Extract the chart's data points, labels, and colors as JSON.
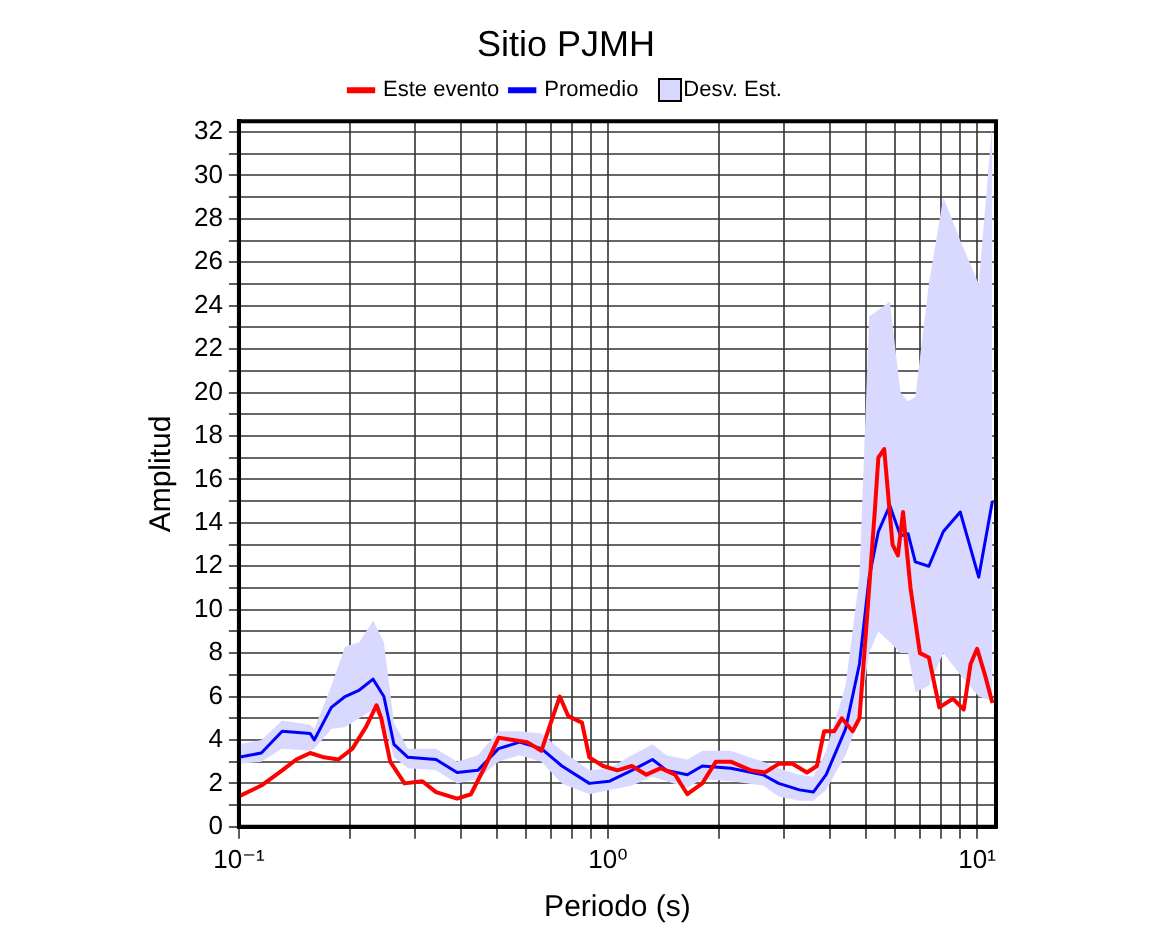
{
  "chart_data": {
    "type": "line",
    "title": "Sitio PJMH",
    "xlabel": "Periodo (s)",
    "ylabel": "Amplitud",
    "log": "x",
    "grid": true,
    "legend": "top",
    "marker": "none",
    "line_style": "solid",
    "xlim": [
      0.1,
      11.25
    ],
    "xticks": [
      {
        "value": 0.1,
        "label": "10⁻¹"
      },
      {
        "value": 0.2,
        "label": null
      },
      {
        "value": 0.3,
        "label": null
      },
      {
        "value": 0.4,
        "label": null
      },
      {
        "value": 0.5,
        "label": null
      },
      {
        "value": 0.6,
        "label": null
      },
      {
        "value": 0.7,
        "label": null
      },
      {
        "value": 0.8,
        "label": null
      },
      {
        "value": 0.9,
        "label": null
      },
      {
        "value": 1,
        "label": "10⁰"
      },
      {
        "value": 2,
        "label": null
      },
      {
        "value": 3,
        "label": null
      },
      {
        "value": 4,
        "label": null
      },
      {
        "value": 5,
        "label": null
      },
      {
        "value": 6,
        "label": null
      },
      {
        "value": 7,
        "label": null
      },
      {
        "value": 8,
        "label": null
      },
      {
        "value": 9,
        "label": null
      },
      {
        "value": 10,
        "label": "10¹"
      }
    ],
    "ylim": [
      0,
      32.5
    ],
    "yticks": [
      0,
      {
        "value": 1,
        "label": null
      },
      2,
      {
        "value": 3,
        "label": null
      },
      4,
      {
        "value": 5,
        "label": null
      },
      6,
      {
        "value": 7,
        "label": null
      },
      8,
      {
        "value": 9,
        "label": null
      },
      10,
      {
        "value": 11,
        "label": null
      },
      12,
      {
        "value": 13,
        "label": null
      },
      14,
      {
        "value": 15,
        "label": null
      },
      16,
      {
        "value": 17,
        "label": null
      },
      18,
      {
        "value": 19,
        "label": null
      },
      20,
      {
        "value": 21,
        "label": null
      },
      22,
      {
        "value": 23,
        "label": null
      },
      24,
      {
        "value": 25,
        "label": null
      },
      26,
      {
        "value": 27,
        "label": null
      },
      28,
      {
        "value": 29,
        "label": null
      },
      30,
      {
        "value": 31,
        "label": null
      },
      32
    ],
    "series": [
      {
        "name": "Este evento",
        "color": "#ff0000",
        "x": [
          0.1,
          0.115,
          0.131,
          0.143,
          0.156,
          0.17,
          0.186,
          0.203,
          0.221,
          0.236,
          0.243,
          0.257,
          0.281,
          0.314,
          0.342,
          0.39,
          0.425,
          0.465,
          0.505,
          0.553,
          0.604,
          0.66,
          0.7,
          0.74,
          0.78,
          0.85,
          0.89,
          0.97,
          1.06,
          1.16,
          1.27,
          1.39,
          1.52,
          1.64,
          1.8,
          1.96,
          2.15,
          2.44,
          2.66,
          2.9,
          3.16,
          3.46,
          3.68,
          3.85,
          4.1,
          4.3,
          4.6,
          4.8,
          5.0,
          5.15,
          5.28,
          5.4,
          5.6,
          5.9,
          6.1,
          6.3,
          6.6,
          7.0,
          7.4,
          7.9,
          8.6,
          9.2,
          9.6,
          10.0,
          10.5,
          11.0
        ],
        "values": [
          1.4,
          1.9,
          2.6,
          3.1,
          3.4,
          3.2,
          3.1,
          3.6,
          4.6,
          5.6,
          5.0,
          3.0,
          2.0,
          2.1,
          1.6,
          1.3,
          1.5,
          2.8,
          4.1,
          4.0,
          3.9,
          3.5,
          4.8,
          6.0,
          5.1,
          4.8,
          3.2,
          2.8,
          2.6,
          2.8,
          2.4,
          2.7,
          2.4,
          1.5,
          2.0,
          3.0,
          3.0,
          2.6,
          2.5,
          2.9,
          2.9,
          2.5,
          2.8,
          4.4,
          4.4,
          5.0,
          4.4,
          5.0,
          9.0,
          12.0,
          14.5,
          17.0,
          17.4,
          13.0,
          12.5,
          14.5,
          11.0,
          8.0,
          7.8,
          5.5,
          5.9,
          5.4,
          7.5,
          8.2,
          7.0,
          5.7
        ]
      },
      {
        "name": "Promedio",
        "color": "#0000ff",
        "x": [
          0.1,
          0.115,
          0.131,
          0.156,
          0.16,
          0.178,
          0.194,
          0.212,
          0.231,
          0.247,
          0.263,
          0.287,
          0.342,
          0.39,
          0.444,
          0.505,
          0.576,
          0.66,
          0.75,
          0.89,
          1.01,
          1.16,
          1.32,
          1.44,
          1.64,
          1.8,
          2.15,
          2.63,
          2.9,
          3.3,
          3.6,
          3.9,
          4.4,
          4.8,
          5.1,
          5.4,
          5.8,
          6.2,
          6.5,
          6.8,
          7.4,
          8.1,
          9.0,
          10.1,
          11.0
        ],
        "values": [
          3.2,
          3.4,
          4.4,
          4.3,
          4.0,
          5.5,
          6.0,
          6.3,
          6.8,
          6.0,
          3.8,
          3.2,
          3.1,
          2.5,
          2.6,
          3.6,
          3.9,
          3.6,
          2.8,
          2.0,
          2.1,
          2.6,
          3.1,
          2.6,
          2.4,
          2.8,
          2.7,
          2.4,
          2.0,
          1.7,
          1.6,
          2.4,
          4.5,
          7.5,
          11.5,
          13.6,
          14.8,
          13.4,
          13.5,
          12.2,
          12.0,
          13.6,
          14.5,
          11.5,
          15.0
        ],
        "lower": [
          2.9,
          3.0,
          3.6,
          3.5,
          3.6,
          4.5,
          4.6,
          5.0,
          5.4,
          4.8,
          3.2,
          2.7,
          2.6,
          2.0,
          2.2,
          3.0,
          3.3,
          3.0,
          2.0,
          1.5,
          1.7,
          1.9,
          2.3,
          2.1,
          1.8,
          2.2,
          2.1,
          1.9,
          1.4,
          1.2,
          1.2,
          1.7,
          3.3,
          5.0,
          8.0,
          9.0,
          8.5,
          8.0,
          8.0,
          6.2,
          6.5,
          8.0,
          7.0,
          6.0,
          5.8
        ],
        "upper": [
          3.8,
          4.0,
          4.9,
          4.7,
          4.5,
          6.5,
          8.3,
          8.5,
          9.5,
          8.5,
          4.8,
          3.6,
          3.6,
          3.0,
          3.3,
          4.4,
          4.4,
          4.3,
          3.5,
          2.6,
          2.7,
          3.3,
          3.8,
          3.3,
          3.1,
          3.5,
          3.5,
          3.0,
          2.7,
          2.4,
          2.3,
          3.5,
          6.5,
          11.5,
          23.5,
          23.8,
          24.2,
          20.0,
          19.6,
          19.8,
          25.0,
          29.0,
          27.0,
          25.0,
          32.4
        ]
      }
    ],
    "annotations": [
      "Desv. Est."
    ]
  }
}
